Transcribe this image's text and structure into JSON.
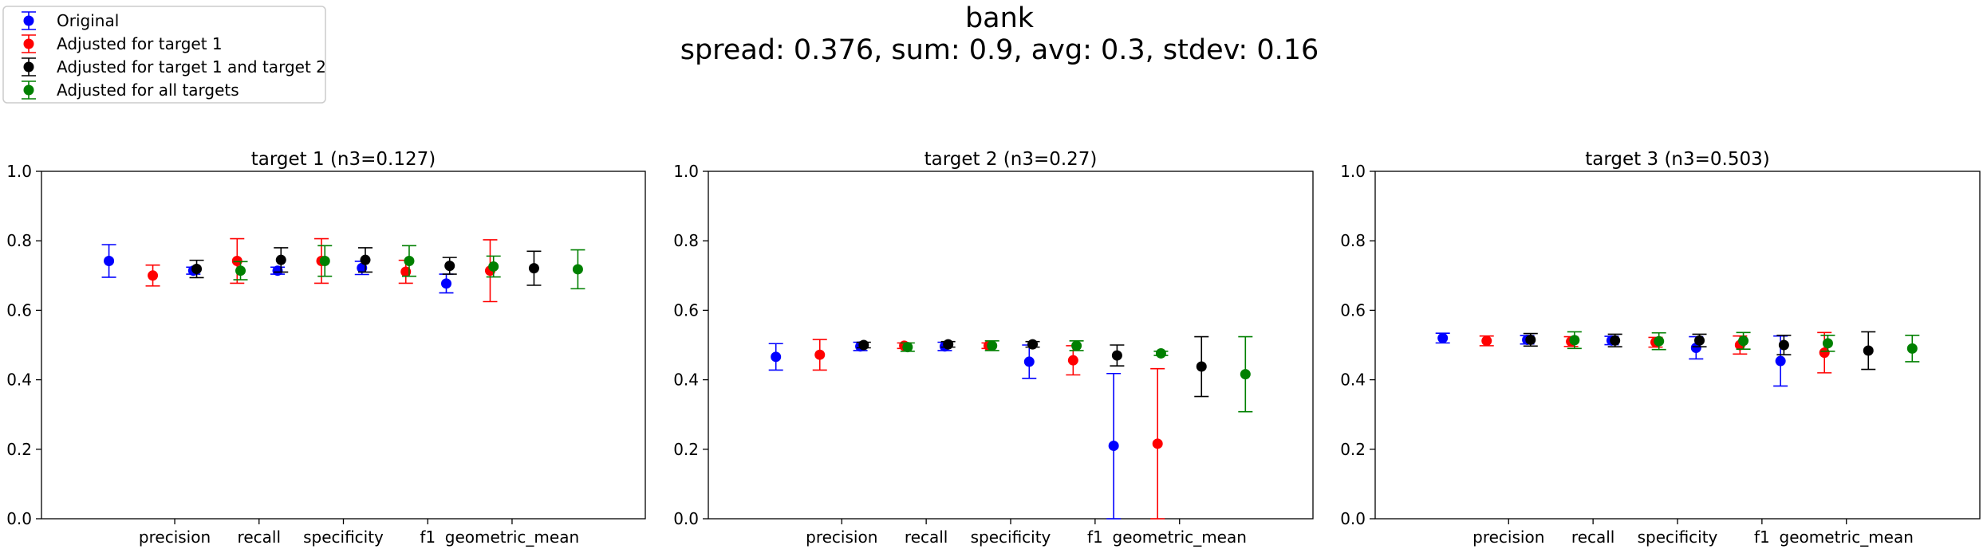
{
  "figure": {
    "title": "bank",
    "subtitle": "spread: 0.376, sum: 0.9, avg: 0.3, stdev: 0.16"
  },
  "legend": {
    "placement": "top-left",
    "entries": [
      {
        "label": "Original",
        "color": "#0000ff"
      },
      {
        "label": "Adjusted for target 1",
        "color": "#ff0000"
      },
      {
        "label": "Adjusted for target 1 and target 2",
        "color": "#000000"
      },
      {
        "label": "Adjusted for all targets",
        "color": "#008000"
      }
    ]
  },
  "chart_data": [
    {
      "type": "scatter",
      "title": "target 1 (n3=0.127)",
      "categories": [
        "precision",
        "recall",
        "specificity",
        "f1",
        "geometric_mean"
      ],
      "ylim": [
        0.0,
        1.0
      ],
      "yticks": [
        "0.0",
        "0.2",
        "0.4",
        "0.6",
        "0.8",
        "1.0"
      ],
      "grid": false,
      "series": [
        {
          "name": "Original",
          "color": "#0000ff",
          "values": [
            0.742,
            0.714,
            0.714,
            0.722,
            0.677
          ],
          "err_low": [
            0.695,
            0.704,
            0.704,
            0.703,
            0.65
          ],
          "err_high": [
            0.789,
            0.724,
            0.724,
            0.741,
            0.704
          ]
        },
        {
          "name": "Adjusted for target 1",
          "color": "#ff0000",
          "values": [
            0.7,
            0.742,
            0.742,
            0.711,
            0.714
          ],
          "err_low": [
            0.67,
            0.678,
            0.678,
            0.678,
            0.625
          ],
          "err_high": [
            0.73,
            0.806,
            0.806,
            0.744,
            0.803
          ]
        },
        {
          "name": "Adjusted for target 1 and target 2",
          "color": "#000000",
          "values": [
            0.719,
            0.745,
            0.745,
            0.728,
            0.721
          ],
          "err_low": [
            0.694,
            0.71,
            0.71,
            0.704,
            0.672
          ],
          "err_high": [
            0.744,
            0.78,
            0.78,
            0.752,
            0.77
          ]
        },
        {
          "name": "Adjusted for all targets",
          "color": "#008000",
          "values": [
            0.714,
            0.742,
            0.742,
            0.726,
            0.718
          ],
          "err_low": [
            0.688,
            0.698,
            0.698,
            0.696,
            0.662
          ],
          "err_high": [
            0.74,
            0.786,
            0.786,
            0.756,
            0.774
          ]
        }
      ]
    },
    {
      "type": "scatter",
      "title": "target 2 (n3=0.27)",
      "categories": [
        "precision",
        "recall",
        "specificity",
        "f1",
        "geometric_mean"
      ],
      "ylim": [
        0.0,
        1.0
      ],
      "yticks": [
        "0.0",
        "0.2",
        "0.4",
        "0.6",
        "0.8",
        "1.0"
      ],
      "grid": false,
      "series": [
        {
          "name": "Original",
          "color": "#0000ff",
          "values": [
            0.466,
            0.496,
            0.496,
            0.452,
            0.21
          ],
          "err_low": [
            0.428,
            0.484,
            0.484,
            0.404,
            0.0
          ],
          "err_high": [
            0.504,
            0.508,
            0.508,
            0.5,
            0.418
          ]
        },
        {
          "name": "Adjusted for target 1",
          "color": "#ff0000",
          "values": [
            0.472,
            0.498,
            0.498,
            0.456,
            0.216
          ],
          "err_low": [
            0.428,
            0.49,
            0.49,
            0.414,
            0.0
          ],
          "err_high": [
            0.516,
            0.506,
            0.506,
            0.498,
            0.432
          ]
        },
        {
          "name": "Adjusted for target 1 and target 2",
          "color": "#000000",
          "values": [
            0.5,
            0.502,
            0.502,
            0.47,
            0.438
          ],
          "err_low": [
            0.492,
            0.494,
            0.494,
            0.44,
            0.352
          ],
          "err_high": [
            0.508,
            0.51,
            0.51,
            0.5,
            0.524
          ]
        },
        {
          "name": "Adjusted for all targets",
          "color": "#008000",
          "values": [
            0.494,
            0.498,
            0.498,
            0.476,
            0.416
          ],
          "err_low": [
            0.482,
            0.484,
            0.484,
            0.47,
            0.308
          ],
          "err_high": [
            0.506,
            0.512,
            0.512,
            0.482,
            0.524
          ]
        }
      ]
    },
    {
      "type": "scatter",
      "title": "target 3 (n3=0.503)",
      "categories": [
        "precision",
        "recall",
        "specificity",
        "f1",
        "geometric_mean"
      ],
      "ylim": [
        0.0,
        1.0
      ],
      "yticks": [
        "0.0",
        "0.2",
        "0.4",
        "0.6",
        "0.8",
        "1.0"
      ],
      "grid": false,
      "series": [
        {
          "name": "Original",
          "color": "#0000ff",
          "values": [
            0.52,
            0.515,
            0.513,
            0.492,
            0.454
          ],
          "err_low": [
            0.506,
            0.503,
            0.501,
            0.46,
            0.382
          ],
          "err_high": [
            0.534,
            0.527,
            0.525,
            0.524,
            0.526
          ]
        },
        {
          "name": "Adjusted for target 1",
          "color": "#ff0000",
          "values": [
            0.512,
            0.51,
            0.508,
            0.5,
            0.478
          ],
          "err_low": [
            0.498,
            0.496,
            0.494,
            0.474,
            0.42
          ],
          "err_high": [
            0.526,
            0.524,
            0.522,
            0.526,
            0.536
          ]
        },
        {
          "name": "Adjusted for target 1 and target 2",
          "color": "#000000",
          "values": [
            0.515,
            0.513,
            0.513,
            0.5,
            0.484
          ],
          "err_low": [
            0.497,
            0.495,
            0.495,
            0.472,
            0.43
          ],
          "err_high": [
            0.533,
            0.531,
            0.531,
            0.528,
            0.538
          ]
        },
        {
          "name": "Adjusted for all targets",
          "color": "#008000",
          "values": [
            0.514,
            0.511,
            0.512,
            0.505,
            0.49
          ],
          "err_low": [
            0.49,
            0.487,
            0.488,
            0.482,
            0.452
          ],
          "err_high": [
            0.538,
            0.535,
            0.536,
            0.528,
            0.528
          ]
        }
      ]
    }
  ]
}
